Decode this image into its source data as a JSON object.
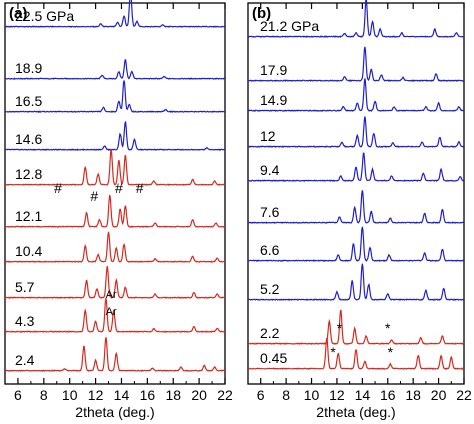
{
  "chart_data": [
    {
      "type": "line",
      "panel_label": "(a)",
      "xlabel": "2theta (deg.)",
      "ylabel": "",
      "xlim": [
        5,
        22
      ],
      "xticks": [
        6,
        8,
        10,
        12,
        14,
        16,
        18,
        20,
        22
      ],
      "pressure_unit": "GPa",
      "series": [
        {
          "name": "22.5 GPa",
          "color": "#1f1fcc",
          "peaks": [
            [
              12.4,
              0.08
            ],
            [
              13.7,
              0.12
            ],
            [
              14.2,
              0.3
            ],
            [
              14.7,
              1.0
            ],
            [
              15.2,
              0.15
            ],
            [
              17.2,
              0.05
            ]
          ]
        },
        {
          "name": "18.9",
          "color": "#1f1fcc",
          "peaks": [
            [
              12.5,
              0.1
            ],
            [
              13.8,
              0.2
            ],
            [
              14.3,
              0.55
            ],
            [
              14.8,
              0.2
            ],
            [
              17.3,
              0.06
            ]
          ]
        },
        {
          "name": "16.5",
          "color": "#1f1fcc",
          "peaks": [
            [
              12.6,
              0.12
            ],
            [
              13.8,
              0.3
            ],
            [
              14.2,
              0.9
            ],
            [
              14.6,
              0.2
            ],
            [
              17.4,
              0.06
            ]
          ]
        },
        {
          "name": "14.6",
          "color": "#1f1fcc",
          "peaks": [
            [
              12.7,
              0.1
            ],
            [
              13.9,
              0.45
            ],
            [
              14.3,
              0.8
            ],
            [
              15.0,
              0.3
            ],
            [
              20.6,
              0.05
            ]
          ]
        },
        {
          "name": "12.8",
          "color": "#d42a1f",
          "peaks": [
            [
              11.2,
              0.5
            ],
            [
              12.2,
              0.3
            ],
            [
              13.2,
              1.0
            ],
            [
              13.8,
              0.7
            ],
            [
              14.3,
              0.85
            ],
            [
              16.5,
              0.1
            ],
            [
              19.5,
              0.15
            ],
            [
              21.2,
              0.1
            ]
          ]
        },
        {
          "name": "12.1",
          "color": "#d42a1f",
          "peaks": [
            [
              11.3,
              0.4
            ],
            [
              12.3,
              0.2
            ],
            [
              13.1,
              0.9
            ],
            [
              13.9,
              0.5
            ],
            [
              14.3,
              0.6
            ],
            [
              16.6,
              0.1
            ],
            [
              19.5,
              0.2
            ],
            [
              21.3,
              0.1
            ]
          ]
        },
        {
          "name": "10.4",
          "color": "#d42a1f",
          "peaks": [
            [
              11.2,
              0.45
            ],
            [
              12.2,
              0.2
            ],
            [
              13.0,
              0.85
            ],
            [
              13.6,
              0.4
            ],
            [
              14.2,
              0.5
            ],
            [
              16.6,
              0.08
            ],
            [
              19.5,
              0.15
            ],
            [
              21.4,
              0.1
            ]
          ]
        },
        {
          "name": "5.7",
          "color": "#d42a1f",
          "peaks": [
            [
              11.3,
              0.5
            ],
            [
              12.1,
              0.25
            ],
            [
              12.9,
              0.9
            ],
            [
              13.6,
              0.5
            ],
            [
              14.3,
              0.3
            ],
            [
              16.6,
              0.1
            ],
            [
              19.6,
              0.15
            ],
            [
              21.4,
              0.1
            ]
          ]
        },
        {
          "name": "4.3",
          "color": "#d42a1f",
          "peaks": [
            [
              11.2,
              0.6
            ],
            [
              12.0,
              0.3
            ],
            [
              12.8,
              0.95
            ],
            [
              13.4,
              0.6
            ],
            [
              16.5,
              0.08
            ],
            [
              19.6,
              0.15
            ],
            [
              21.4,
              0.1
            ]
          ]
        },
        {
          "name": "2.4",
          "color": "#d42a1f",
          "peaks": [
            [
              9.6,
              0.05
            ],
            [
              11.1,
              0.7
            ],
            [
              12.0,
              0.3
            ],
            [
              12.8,
              0.95
            ],
            [
              13.6,
              0.5
            ],
            [
              16.4,
              0.08
            ],
            [
              18.6,
              0.1
            ],
            [
              20.4,
              0.15
            ],
            [
              21.2,
              0.1
            ]
          ]
        }
      ],
      "annotations": [
        "#",
        "#",
        "#",
        "#",
        "Ar",
        "Ar"
      ]
    },
    {
      "type": "line",
      "panel_label": "(b)",
      "xlabel": "2theta (deg.)",
      "ylabel": "",
      "xlim": [
        5,
        22
      ],
      "xticks": [
        6,
        8,
        10,
        12,
        14,
        16,
        18,
        20,
        22
      ],
      "pressure_unit": "GPa",
      "series": [
        {
          "name": "21.2 GPa",
          "color": "#1f1fcc",
          "peaks": [
            [
              12.6,
              0.08
            ],
            [
              13.5,
              0.1
            ],
            [
              14.3,
              1.0
            ],
            [
              14.8,
              0.4
            ],
            [
              15.4,
              0.2
            ],
            [
              17.1,
              0.1
            ],
            [
              19.7,
              0.2
            ],
            [
              21.4,
              0.1
            ]
          ]
        },
        {
          "name": "17.9",
          "color": "#1f1fcc",
          "peaks": [
            [
              12.6,
              0.1
            ],
            [
              14.2,
              0.9
            ],
            [
              14.7,
              0.3
            ],
            [
              15.5,
              0.15
            ],
            [
              17.2,
              0.08
            ],
            [
              19.8,
              0.18
            ]
          ]
        },
        {
          "name": "14.9",
          "color": "#1f1fcc",
          "peaks": [
            [
              12.5,
              0.1
            ],
            [
              13.6,
              0.2
            ],
            [
              14.2,
              0.85
            ],
            [
              15.0,
              0.25
            ],
            [
              16.5,
              0.1
            ],
            [
              19.0,
              0.1
            ],
            [
              20.0,
              0.2
            ],
            [
              21.6,
              0.1
            ]
          ]
        },
        {
          "name": "12",
          "color": "#1f1fcc",
          "peaks": [
            [
              12.4,
              0.12
            ],
            [
              13.6,
              0.3
            ],
            [
              14.2,
              0.8
            ],
            [
              14.9,
              0.35
            ],
            [
              16.4,
              0.1
            ],
            [
              18.7,
              0.12
            ],
            [
              20.1,
              0.25
            ],
            [
              21.6,
              0.12
            ]
          ]
        },
        {
          "name": "9.4",
          "color": "#1f1fcc",
          "peaks": [
            [
              12.3,
              0.12
            ],
            [
              13.5,
              0.35
            ],
            [
              14.1,
              0.75
            ],
            [
              14.8,
              0.3
            ],
            [
              16.3,
              0.12
            ],
            [
              18.8,
              0.2
            ],
            [
              20.2,
              0.3
            ],
            [
              21.7,
              0.1
            ]
          ]
        },
        {
          "name": "7.6",
          "color": "#1f1fcc",
          "peaks": [
            [
              12.2,
              0.15
            ],
            [
              13.4,
              0.4
            ],
            [
              14.0,
              0.85
            ],
            [
              14.7,
              0.3
            ],
            [
              16.2,
              0.12
            ],
            [
              18.9,
              0.25
            ],
            [
              20.3,
              0.35
            ]
          ]
        },
        {
          "name": "6.6",
          "color": "#1f1fcc",
          "peaks": [
            [
              12.1,
              0.15
            ],
            [
              13.3,
              0.45
            ],
            [
              14.0,
              0.9
            ],
            [
              14.6,
              0.35
            ],
            [
              16.1,
              0.15
            ],
            [
              18.9,
              0.2
            ],
            [
              20.3,
              0.3
            ]
          ]
        },
        {
          "name": "5.2",
          "color": "#1f1fcc",
          "peaks": [
            [
              12.0,
              0.2
            ],
            [
              13.2,
              0.5
            ],
            [
              14.0,
              0.95
            ],
            [
              14.5,
              0.4
            ],
            [
              16.0,
              0.15
            ],
            [
              19.0,
              0.25
            ],
            [
              20.4,
              0.3
            ]
          ]
        },
        {
          "name": "2.2",
          "color": "#d42a1f",
          "peaks": [
            [
              11.4,
              0.6
            ],
            [
              12.3,
              0.9
            ],
            [
              13.4,
              0.4
            ],
            [
              14.3,
              0.2
            ],
            [
              16.3,
              0.1
            ],
            [
              18.6,
              0.15
            ],
            [
              20.3,
              0.2
            ]
          ]
        },
        {
          "name": "0.45",
          "color": "#d42a1f",
          "peaks": [
            [
              11.2,
              0.8
            ],
            [
              12.1,
              0.4
            ],
            [
              13.5,
              0.5
            ],
            [
              14.2,
              0.2
            ],
            [
              16.2,
              0.12
            ],
            [
              18.4,
              0.35
            ],
            [
              20.2,
              0.35
            ],
            [
              21.0,
              0.3
            ]
          ]
        }
      ],
      "annotations": [
        "*",
        "*",
        "*",
        "*"
      ]
    }
  ]
}
